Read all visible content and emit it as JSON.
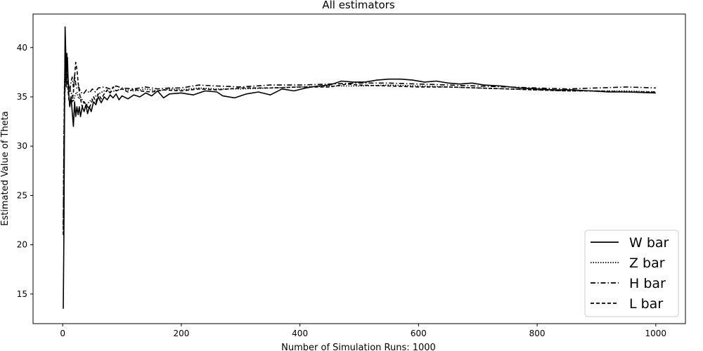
{
  "chart_data": {
    "type": "line",
    "title": "All estimators",
    "xlabel": "Number of Simulation Runs: 1000",
    "ylabel": "Estimated Value of Theta",
    "xlim": [
      -50,
      1050
    ],
    "ylim": [
      12.0,
      43.4
    ],
    "xticks": [
      "0",
      "200",
      "400",
      "600",
      "800",
      "1000"
    ],
    "yticks": [
      "15",
      "20",
      "25",
      "30",
      "35",
      "40"
    ],
    "grid": false,
    "legend_position": "bottom-right",
    "colors": {
      "line": "#000000",
      "background": "#ffffff"
    },
    "series": [
      {
        "name": "W bar",
        "style": "solid",
        "points": [
          [
            1,
            13.5
          ],
          [
            2,
            21
          ],
          [
            3,
            32
          ],
          [
            4,
            42.1
          ],
          [
            5,
            40
          ],
          [
            6,
            36
          ],
          [
            7,
            38.5
          ],
          [
            8,
            39
          ],
          [
            9,
            37
          ],
          [
            10,
            35.5
          ],
          [
            12,
            34
          ],
          [
            14,
            35
          ],
          [
            16,
            33.5
          ],
          [
            18,
            32
          ],
          [
            20,
            34.5
          ],
          [
            22,
            33
          ],
          [
            24,
            34
          ],
          [
            26,
            33.2
          ],
          [
            28,
            34
          ],
          [
            30,
            33
          ],
          [
            33,
            34
          ],
          [
            36,
            33.5
          ],
          [
            39,
            34.2
          ],
          [
            42,
            33.3
          ],
          [
            45,
            34
          ],
          [
            48,
            33.5
          ],
          [
            52,
            34.5
          ],
          [
            56,
            34.2
          ],
          [
            60,
            35
          ],
          [
            65,
            34.4
          ],
          [
            70,
            35
          ],
          [
            75,
            34.7
          ],
          [
            80,
            35.2
          ],
          [
            85,
            34.9
          ],
          [
            90,
            35.3
          ],
          [
            95,
            34.7
          ],
          [
            100,
            35.1
          ],
          [
            110,
            34.8
          ],
          [
            120,
            35.2
          ],
          [
            130,
            35
          ],
          [
            140,
            35.4
          ],
          [
            150,
            35.1
          ],
          [
            160,
            35.6
          ],
          [
            170,
            34.9
          ],
          [
            180,
            35.3
          ],
          [
            200,
            35.4
          ],
          [
            220,
            35.2
          ],
          [
            240,
            35.6
          ],
          [
            260,
            35.5
          ],
          [
            270,
            35.1
          ],
          [
            290,
            34.9
          ],
          [
            310,
            35.3
          ],
          [
            330,
            35.5
          ],
          [
            350,
            35.2
          ],
          [
            370,
            35.8
          ],
          [
            390,
            35.6
          ],
          [
            410,
            35.9
          ],
          [
            430,
            36.1
          ],
          [
            450,
            36.2
          ],
          [
            470,
            36.6
          ],
          [
            490,
            36.5
          ],
          [
            510,
            36.5
          ],
          [
            530,
            36.7
          ],
          [
            550,
            36.8
          ],
          [
            570,
            36.8
          ],
          [
            590,
            36.7
          ],
          [
            610,
            36.5
          ],
          [
            630,
            36.6
          ],
          [
            650,
            36.4
          ],
          [
            670,
            36.3
          ],
          [
            690,
            36.4
          ],
          [
            710,
            36.2
          ],
          [
            740,
            36.1
          ],
          [
            770,
            35.9
          ],
          [
            800,
            35.8
          ],
          [
            830,
            35.7
          ],
          [
            860,
            35.7
          ],
          [
            890,
            35.6
          ],
          [
            920,
            35.5
          ],
          [
            950,
            35.5
          ],
          [
            1000,
            35.4
          ]
        ]
      },
      {
        "name": "Z bar",
        "style": "dotted",
        "points": [
          [
            1,
            21
          ],
          [
            2,
            30
          ],
          [
            3,
            36
          ],
          [
            4,
            38.5
          ],
          [
            5,
            39.5
          ],
          [
            6,
            37
          ],
          [
            8,
            36.5
          ],
          [
            10,
            35.3
          ],
          [
            12,
            35.8
          ],
          [
            15,
            35.3
          ],
          [
            18,
            34.5
          ],
          [
            21,
            35.2
          ],
          [
            24,
            35.5
          ],
          [
            27,
            34.8
          ],
          [
            30,
            35
          ],
          [
            35,
            34.5
          ],
          [
            40,
            34.2
          ],
          [
            45,
            34.5
          ],
          [
            50,
            34.8
          ],
          [
            60,
            35.3
          ],
          [
            70,
            35.6
          ],
          [
            80,
            35.5
          ],
          [
            100,
            35.8
          ],
          [
            120,
            35.6
          ],
          [
            140,
            35.8
          ],
          [
            160,
            35.6
          ],
          [
            180,
            35.8
          ],
          [
            200,
            35.7
          ],
          [
            230,
            35.9
          ],
          [
            260,
            35.8
          ],
          [
            300,
            35.8
          ],
          [
            350,
            35.9
          ],
          [
            400,
            36
          ],
          [
            450,
            36.1
          ],
          [
            500,
            36.1
          ],
          [
            550,
            36.2
          ],
          [
            600,
            36.1
          ],
          [
            650,
            36
          ],
          [
            700,
            35.9
          ],
          [
            750,
            35.8
          ],
          [
            800,
            35.7
          ],
          [
            850,
            35.6
          ],
          [
            900,
            35.6
          ],
          [
            950,
            35.6
          ],
          [
            1000,
            35.5
          ]
        ]
      },
      {
        "name": "H bar",
        "style": "dashdot",
        "points": [
          [
            1,
            22
          ],
          [
            2,
            30
          ],
          [
            3,
            34
          ],
          [
            4,
            36
          ],
          [
            5,
            37.5
          ],
          [
            6,
            38.8
          ],
          [
            7,
            39.5
          ],
          [
            8,
            37.5
          ],
          [
            10,
            36.2
          ],
          [
            12,
            35.5
          ],
          [
            14,
            36.5
          ],
          [
            16,
            37
          ],
          [
            18,
            36
          ],
          [
            20,
            37.2
          ],
          [
            22,
            36.3
          ],
          [
            24,
            35.8
          ],
          [
            27,
            36
          ],
          [
            30,
            35.5
          ],
          [
            35,
            35.3
          ],
          [
            40,
            35.7
          ],
          [
            45,
            35.4
          ],
          [
            50,
            35.8
          ],
          [
            55,
            35.5
          ],
          [
            60,
            35.9
          ],
          [
            70,
            36
          ],
          [
            80,
            35.8
          ],
          [
            90,
            36.1
          ],
          [
            100,
            35.9
          ],
          [
            120,
            35.8
          ],
          [
            140,
            36
          ],
          [
            160,
            35.8
          ],
          [
            180,
            35.9
          ],
          [
            200,
            35.9
          ],
          [
            230,
            36.2
          ],
          [
            260,
            36.1
          ],
          [
            300,
            36
          ],
          [
            350,
            36.2
          ],
          [
            400,
            36.2
          ],
          [
            450,
            36.3
          ],
          [
            500,
            36.4
          ],
          [
            550,
            36.4
          ],
          [
            600,
            36.3
          ],
          [
            650,
            36.2
          ],
          [
            700,
            36.1
          ],
          [
            750,
            36
          ],
          [
            800,
            35.9
          ],
          [
            850,
            35.8
          ],
          [
            900,
            35.9
          ],
          [
            950,
            36
          ],
          [
            1000,
            35.9
          ]
        ]
      },
      {
        "name": "L bar",
        "style": "dashed",
        "points": [
          [
            1,
            21
          ],
          [
            2,
            30
          ],
          [
            3,
            36
          ],
          [
            4,
            37.5
          ],
          [
            5,
            38.5
          ],
          [
            6,
            37.5
          ],
          [
            8,
            36.5
          ],
          [
            10,
            35
          ],
          [
            12,
            34
          ],
          [
            14,
            35
          ],
          [
            16,
            34.5
          ],
          [
            18,
            35.5
          ],
          [
            20,
            37
          ],
          [
            22,
            38.5
          ],
          [
            24,
            37.8
          ],
          [
            26,
            36.5
          ],
          [
            28,
            35.5
          ],
          [
            30,
            34.8
          ],
          [
            33,
            34
          ],
          [
            36,
            34.5
          ],
          [
            40,
            34.2
          ],
          [
            44,
            33.8
          ],
          [
            48,
            34.3
          ],
          [
            52,
            35
          ],
          [
            56,
            34.5
          ],
          [
            60,
            35.3
          ],
          [
            65,
            34.8
          ],
          [
            70,
            35.3
          ],
          [
            75,
            35.7
          ],
          [
            80,
            35.4
          ],
          [
            85,
            36
          ],
          [
            90,
            35.6
          ],
          [
            100,
            35.8
          ],
          [
            110,
            35.5
          ],
          [
            120,
            35.8
          ],
          [
            130,
            35.6
          ],
          [
            150,
            35.5
          ],
          [
            170,
            35.7
          ],
          [
            200,
            35.6
          ],
          [
            230,
            35.8
          ],
          [
            260,
            35.7
          ],
          [
            300,
            35.9
          ],
          [
            350,
            35.9
          ],
          [
            400,
            36
          ],
          [
            450,
            36
          ],
          [
            480,
            36.3
          ],
          [
            500,
            36.2
          ],
          [
            550,
            36.1
          ],
          [
            600,
            36
          ],
          [
            650,
            36
          ],
          [
            700,
            35.9
          ],
          [
            750,
            35.8
          ],
          [
            800,
            35.7
          ],
          [
            850,
            35.6
          ],
          [
            900,
            35.6
          ],
          [
            950,
            35.5
          ],
          [
            1000,
            35.5
          ]
        ]
      }
    ]
  }
}
